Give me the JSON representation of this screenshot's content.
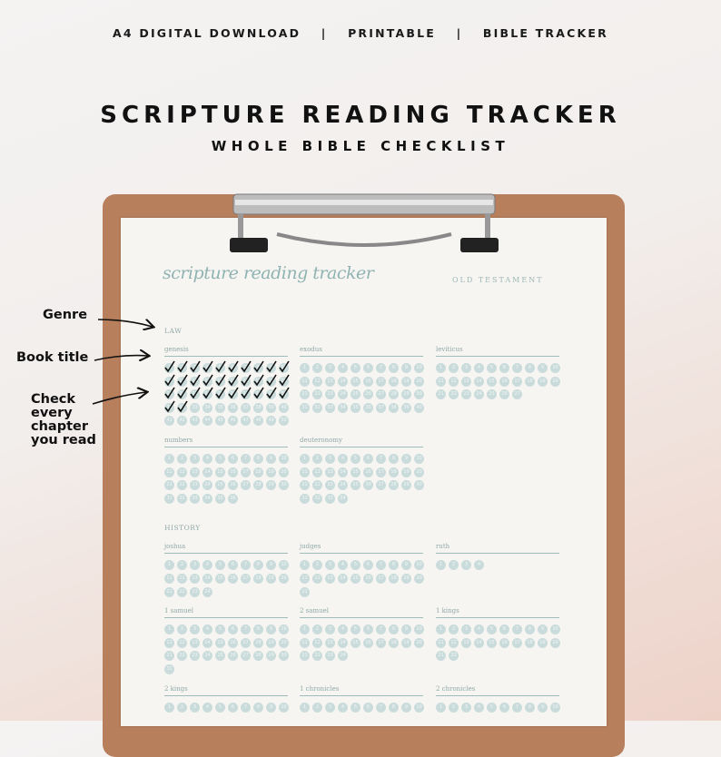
{
  "header": {
    "formats": [
      "A4 DIGITAL DOWNLOAD",
      "PRINTABLE",
      "BIBLE TRACKER"
    ],
    "separator": "|",
    "title": "SCRIPTURE READING TRACKER",
    "subtitle": "WHOLE BIBLE CHECKLIST"
  },
  "annotations": {
    "genre": "Genre",
    "book_title": "Book title",
    "check": [
      "Check",
      "every",
      "chapter",
      "you read"
    ]
  },
  "page": {
    "script_title": "scripture reading tracker",
    "section": "OLD TESTAMENT",
    "genres": [
      {
        "name": "LAW",
        "books": [
          {
            "title": "genesis",
            "read": 32,
            "chapters": [
              1,
              2,
              3,
              4,
              5,
              6,
              7,
              8,
              9,
              10,
              11,
              12,
              13,
              14,
              15,
              16,
              17,
              18,
              19,
              20,
              21,
              22,
              23,
              24,
              25,
              26,
              27,
              28,
              29,
              30,
              31,
              32,
              33,
              34,
              35,
              36,
              37,
              38,
              39,
              40,
              41,
              42,
              43,
              44,
              45,
              46,
              47,
              48,
              49,
              50
            ]
          },
          {
            "title": "exodus",
            "chapters": [
              1,
              2,
              3,
              4,
              5,
              6,
              7,
              8,
              9,
              10,
              11,
              12,
              13,
              14,
              15,
              16,
              17,
              18,
              19,
              20,
              21,
              22,
              23,
              24,
              25,
              26,
              27,
              28,
              29,
              30,
              31,
              32,
              33,
              34,
              35,
              36,
              37,
              38,
              39,
              40
            ]
          },
          {
            "title": "leviticus",
            "chapters": [
              1,
              2,
              3,
              4,
              5,
              6,
              7,
              8,
              9,
              10,
              11,
              12,
              13,
              14,
              15,
              16,
              17,
              18,
              19,
              20,
              21,
              22,
              23,
              24,
              25,
              26,
              27
            ]
          },
          {
            "title": "numbers",
            "chapters": [
              1,
              2,
              3,
              4,
              5,
              6,
              7,
              8,
              9,
              10,
              11,
              12,
              13,
              14,
              15,
              16,
              17,
              18,
              19,
              20,
              21,
              22,
              23,
              24,
              25,
              26,
              27,
              28,
              29,
              30,
              31,
              32,
              33,
              34,
              35,
              36
            ]
          },
          {
            "title": "deuteronomy",
            "chapters": [
              1,
              2,
              3,
              4,
              5,
              6,
              7,
              8,
              9,
              10,
              11,
              12,
              13,
              14,
              15,
              16,
              17,
              18,
              19,
              20,
              21,
              22,
              23,
              24,
              25,
              26,
              27,
              28,
              29,
              30,
              31,
              32,
              33,
              34
            ]
          }
        ]
      },
      {
        "name": "HISTORY",
        "books": [
          {
            "title": "joshua",
            "chapters": [
              1,
              2,
              3,
              4,
              5,
              6,
              7,
              8,
              9,
              10,
              11,
              12,
              13,
              14,
              15,
              16,
              17,
              18,
              19,
              20,
              21,
              22,
              23,
              24
            ]
          },
          {
            "title": "judges",
            "chapters": [
              1,
              2,
              3,
              4,
              5,
              6,
              7,
              8,
              9,
              10,
              11,
              12,
              13,
              14,
              15,
              16,
              17,
              18,
              19,
              20,
              21
            ]
          },
          {
            "title": "ruth",
            "chapters": [
              1,
              2,
              3,
              4
            ]
          },
          {
            "title": "1 samuel",
            "chapters": [
              1,
              2,
              3,
              4,
              5,
              6,
              7,
              8,
              9,
              10,
              11,
              12,
              13,
              14,
              15,
              16,
              17,
              18,
              19,
              20,
              21,
              22,
              23,
              24,
              25,
              26,
              27,
              28,
              29,
              30,
              31
            ]
          },
          {
            "title": "2 samuel",
            "chapters": [
              1,
              2,
              3,
              4,
              5,
              6,
              7,
              8,
              9,
              10,
              11,
              12,
              13,
              14,
              15,
              16,
              17,
              18,
              19,
              20,
              21,
              22,
              23,
              24
            ]
          },
          {
            "title": "1 kings",
            "chapters": [
              1,
              2,
              3,
              4,
              5,
              6,
              7,
              8,
              9,
              10,
              11,
              12,
              13,
              14,
              15,
              16,
              17,
              18,
              19,
              20,
              21,
              22
            ]
          },
          {
            "title": "2 kings",
            "chapters": [
              1,
              2,
              3,
              4,
              5,
              6,
              7,
              8,
              9,
              10
            ]
          },
          {
            "title": "1 chronicles",
            "chapters": [
              1,
              2,
              3,
              4,
              5,
              6,
              7,
              8,
              9,
              10
            ]
          },
          {
            "title": "2 chronicles",
            "chapters": [
              1,
              2,
              3,
              4,
              5,
              6,
              7,
              8,
              9,
              10
            ]
          }
        ]
      }
    ]
  }
}
